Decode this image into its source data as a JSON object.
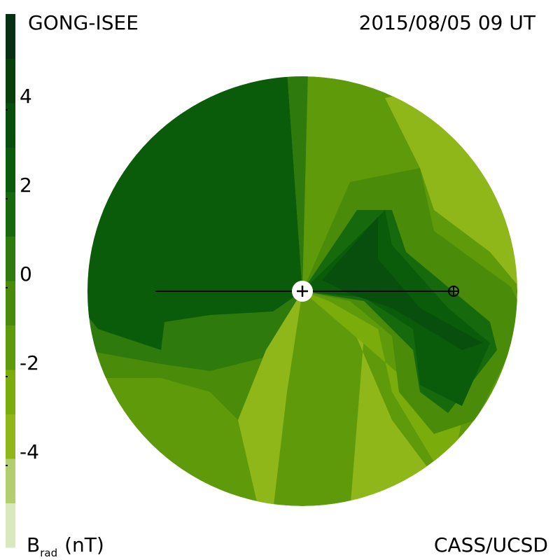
{
  "header": {
    "left": "GONG-ISEE",
    "right": "2015/08/05 09 UT"
  },
  "footer": {
    "symbol": "B",
    "subscript": "rad",
    "unit": "(nT)",
    "credit": "CASS/UCSD"
  },
  "colorbar": {
    "clim": [
      -6,
      6
    ],
    "ticks": [
      4,
      2,
      0,
      -2,
      -4
    ],
    "colors": [
      "#d9e9bd",
      "#b2cf70",
      "#8fb71a",
      "#7aac0c",
      "#5e9a0a",
      "#4a8c0a",
      "#2f7a0c",
      "#16690c",
      "#0a5c0a",
      "#084e0c",
      "#08400c",
      "#063010"
    ]
  }
}
